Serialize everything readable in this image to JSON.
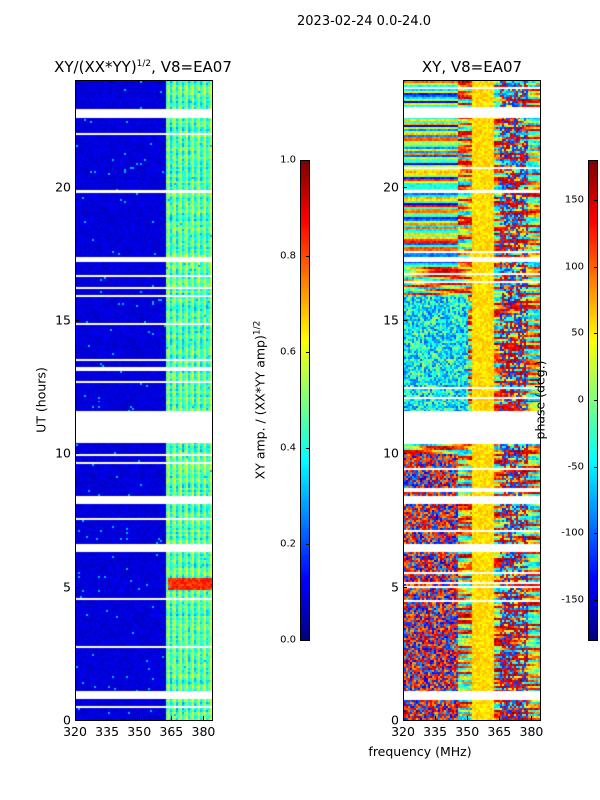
{
  "figure": {
    "suptitle": "2023-02-24 0.0-24.0",
    "shared_xlabel": "frequency (MHz)"
  },
  "chart_data": [
    {
      "type": "heatmap",
      "title_main": "XY/(XX*YY)",
      "title_sup": "1/2",
      "title_rest": ", V8=EA07",
      "ylabel": "UT (hours)",
      "xlabel": "frequency (MHz)",
      "xlim": [
        320,
        384
      ],
      "ylim": [
        0,
        24
      ],
      "xticks": [
        "320",
        "335",
        "350",
        "365",
        "380"
      ],
      "yticks": [
        "0",
        "5",
        "10",
        "15",
        "20"
      ],
      "colormap": "jet",
      "masked_ut_ranges": [
        [
          0.8,
          1.1
        ],
        [
          6.3,
          6.6
        ],
        [
          8.1,
          8.4
        ],
        [
          10.4,
          11.6
        ],
        [
          17.2,
          17.4
        ],
        [
          19.8,
          19.9
        ],
        [
          22.6,
          22.95
        ]
      ],
      "colorbar": {
        "label_main": "XY amp. / (XX*YY amp)",
        "label_sup": "1/2",
        "range": [
          0.0,
          1.0
        ],
        "ticks": [
          "0.0",
          "0.2",
          "0.4",
          "0.6",
          "0.8",
          "1.0"
        ]
      }
    },
    {
      "type": "heatmap",
      "title_main": "XY, V8=EA07",
      "ylabel": "",
      "xlim": [
        320,
        384
      ],
      "ylim": [
        0,
        24
      ],
      "xticks": [
        "320",
        "335",
        "350",
        "365",
        "380"
      ],
      "yticks": [
        "0",
        "5",
        "10",
        "15",
        "20"
      ],
      "colormap": "jet",
      "masked_ut_ranges": [
        [
          0.8,
          1.1
        ],
        [
          6.3,
          6.6
        ],
        [
          8.1,
          8.4
        ],
        [
          10.4,
          11.6
        ],
        [
          17.2,
          17.4
        ],
        [
          19.8,
          19.9
        ],
        [
          22.6,
          22.95
        ]
      ],
      "colorbar": {
        "label_main": "phase (deg.)",
        "range": [
          -180,
          180
        ],
        "ticks": [
          "-150",
          "-100",
          "-50",
          "0",
          "50",
          "100",
          "150"
        ]
      }
    }
  ]
}
